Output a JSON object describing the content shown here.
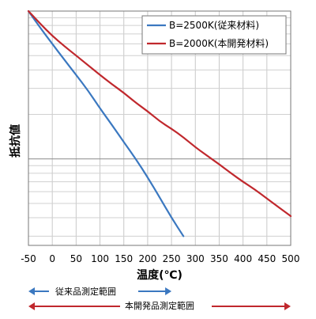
{
  "chart_data": {
    "type": "line",
    "xlabel": "温度(℃)",
    "ylabel": "抵抗値",
    "xlim": [
      -50,
      500
    ],
    "x_ticks": [
      "-50",
      "0",
      "50",
      "100",
      "150",
      "200",
      "250",
      "300",
      "350",
      "400",
      "450",
      "500"
    ],
    "y_scale": "log",
    "grid": true,
    "legend_position": "top-right",
    "series": [
      {
        "name": "B=2500K(従来材料)",
        "color": "#3B78C0",
        "x": [
          -50,
          -25,
          0,
          25,
          50,
          75,
          100,
          125,
          150,
          175,
          200,
          225,
          250,
          275
        ],
        "y_rel": [
          1.0,
          0.77,
          0.6,
          0.47,
          0.37,
          0.29,
          0.22,
          0.17,
          0.13,
          0.1,
          0.075,
          0.055,
          0.04,
          0.03
        ]
      },
      {
        "name": "B=2000K(本開発材料)",
        "color": "#C0282D",
        "x": [
          -50,
          -25,
          0,
          25,
          50,
          75,
          100,
          125,
          150,
          175,
          200,
          225,
          250,
          275,
          300,
          325,
          350,
          375,
          400,
          425,
          450,
          475,
          500
        ],
        "y_rel": [
          1.0,
          0.82,
          0.68,
          0.58,
          0.5,
          0.43,
          0.37,
          0.32,
          0.28,
          0.24,
          0.21,
          0.18,
          0.16,
          0.14,
          0.12,
          0.105,
          0.092,
          0.08,
          0.07,
          0.062,
          0.054,
          0.047,
          0.041
        ]
      }
    ],
    "ranges": [
      {
        "label": "従来品測定範囲",
        "from": -50,
        "to": 250,
        "color": "#3B78C0"
      },
      {
        "label": "本開発品測定範囲",
        "from": -50,
        "to": 500,
        "color": "#C0282D"
      }
    ]
  }
}
